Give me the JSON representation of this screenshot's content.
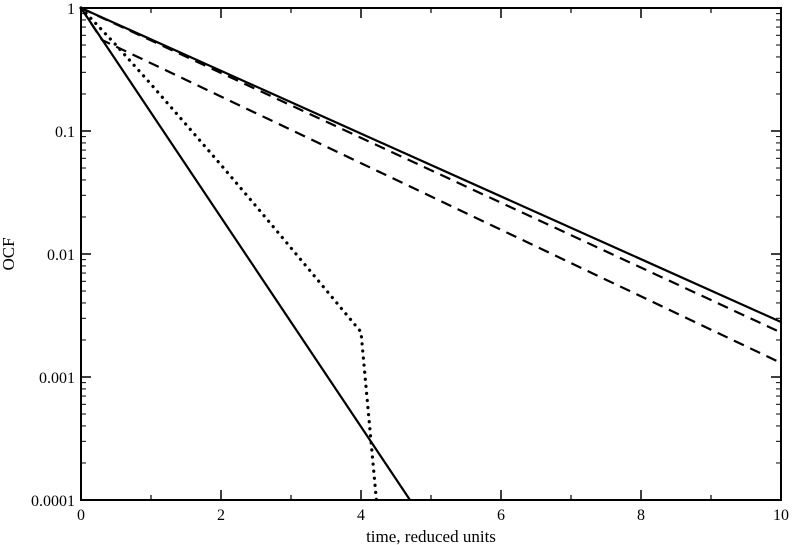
{
  "chart_data": {
    "type": "line",
    "title": "",
    "xlabel": "time, reduced units",
    "ylabel": "OCF",
    "xlim": [
      0,
      10
    ],
    "ylim": [
      0.0001,
      1
    ],
    "yscale": "log",
    "grid": false,
    "legend": "none",
    "x_ticks": [
      {
        "value": 0,
        "label": "0"
      },
      {
        "value": 2,
        "label": "2"
      },
      {
        "value": 4,
        "label": "4"
      },
      {
        "value": 6,
        "label": "6"
      },
      {
        "value": 8,
        "label": "8"
      },
      {
        "value": 10,
        "label": "10"
      }
    ],
    "y_ticks": [
      {
        "value": 1,
        "label": "1"
      },
      {
        "value": 0.1,
        "label": "0.1"
      },
      {
        "value": 0.01,
        "label": "0.01"
      },
      {
        "value": 0.001,
        "label": "0.001"
      },
      {
        "value": 0.0001,
        "label": "0.0001"
      }
    ],
    "series": [
      {
        "style": "solid",
        "color": "#000000",
        "x": [
          0,
          10
        ],
        "y": [
          1,
          0.0028
        ]
      },
      {
        "style": "dashed",
        "color": "#000000",
        "x": [
          0,
          10
        ],
        "y": [
          1,
          0.0023
        ]
      },
      {
        "style": "dashed",
        "color": "#000000",
        "x": [
          0,
          0.3,
          10
        ],
        "y": [
          1,
          0.55,
          0.0013
        ]
      },
      {
        "style": "solid",
        "color": "#000000",
        "x": [
          0,
          4.7
        ],
        "y": [
          1,
          0.0001
        ]
      },
      {
        "style": "dotted",
        "color": "#000000",
        "x": [
          0,
          0.2,
          0.5,
          1.0,
          1.5,
          2.0,
          2.5,
          3.0,
          3.5,
          4.0,
          4.22
        ],
        "y": [
          1,
          0.76,
          0.5,
          0.24,
          0.113,
          0.053,
          0.0245,
          0.0112,
          0.0051,
          0.00232,
          0.0001
        ]
      }
    ]
  }
}
